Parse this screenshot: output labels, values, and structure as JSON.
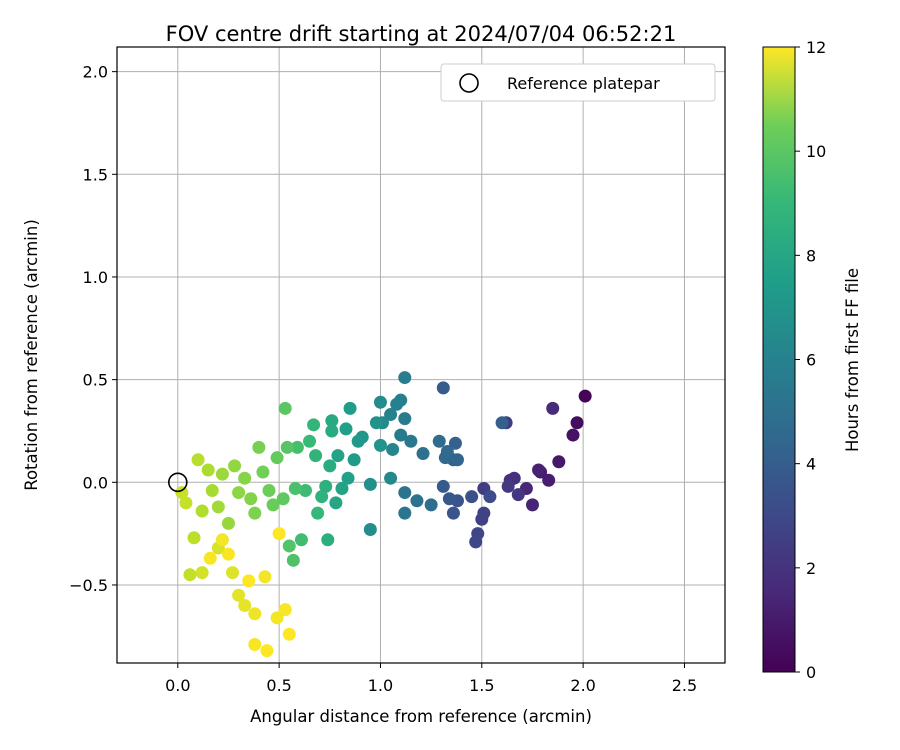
{
  "chart_data": {
    "type": "scatter",
    "title": "FOV centre drift starting at 2024/07/04 06:52:21",
    "xlabel": "Angular distance from reference (arcmin)",
    "ylabel": "Rotation from reference (arcmin)",
    "xlim": [
      -0.3,
      2.7
    ],
    "ylim": [
      -0.88,
      2.12
    ],
    "x_ticks": [
      0.0,
      0.5,
      1.0,
      1.5,
      2.0,
      2.5
    ],
    "x_tick_labels": [
      "0.0",
      "0.5",
      "1.0",
      "1.5",
      "2.0",
      "2.5"
    ],
    "y_ticks": [
      -0.5,
      0.0,
      0.5,
      1.0,
      1.5,
      2.0
    ],
    "y_tick_labels": [
      "−0.5",
      "0.0",
      "0.5",
      "1.0",
      "1.5",
      "2.0"
    ],
    "grid": true,
    "legend": {
      "position": "top-right",
      "entries": [
        "Reference platepar"
      ]
    },
    "reference_point": {
      "x": 0.0,
      "y": 0.0
    },
    "colorbar": {
      "label": "Hours from first FF file",
      "colormap": "viridis",
      "range": [
        0,
        12
      ],
      "ticks": [
        0,
        2,
        4,
        6,
        8,
        10,
        12
      ],
      "tick_labels": [
        "0",
        "2",
        "4",
        "6",
        "8",
        "10",
        "12"
      ]
    },
    "points": [
      {
        "x": 2.01,
        "y": 0.42,
        "h": 0.1
      },
      {
        "x": 1.97,
        "y": 0.29,
        "h": 0.4
      },
      {
        "x": 1.95,
        "y": 0.23,
        "h": 0.6
      },
      {
        "x": 1.88,
        "y": 0.1,
        "h": 0.8
      },
      {
        "x": 1.79,
        "y": 0.05,
        "h": 0.9
      },
      {
        "x": 1.83,
        "y": 0.01,
        "h": 1.0
      },
      {
        "x": 1.78,
        "y": 0.06,
        "h": 1.1
      },
      {
        "x": 1.75,
        "y": -0.11,
        "h": 1.2
      },
      {
        "x": 1.72,
        "y": -0.03,
        "h": 1.3
      },
      {
        "x": 1.85,
        "y": 0.36,
        "h": 1.5
      },
      {
        "x": 1.66,
        "y": 0.02,
        "h": 1.6
      },
      {
        "x": 1.64,
        "y": 0.01,
        "h": 1.7
      },
      {
        "x": 1.68,
        "y": -0.06,
        "h": 1.9
      },
      {
        "x": 1.63,
        "y": -0.02,
        "h": 2.0
      },
      {
        "x": 1.62,
        "y": 0.29,
        "h": 2.1
      },
      {
        "x": 1.51,
        "y": -0.03,
        "h": 2.2
      },
      {
        "x": 1.5,
        "y": -0.18,
        "h": 2.3
      },
      {
        "x": 1.51,
        "y": -0.15,
        "h": 2.4
      },
      {
        "x": 1.48,
        "y": -0.25,
        "h": 2.5
      },
      {
        "x": 1.47,
        "y": -0.29,
        "h": 2.6
      },
      {
        "x": 1.54,
        "y": -0.07,
        "h": 2.8
      },
      {
        "x": 1.45,
        "y": -0.07,
        "h": 3.0
      },
      {
        "x": 1.38,
        "y": -0.09,
        "h": 3.1
      },
      {
        "x": 1.36,
        "y": -0.15,
        "h": 3.2
      },
      {
        "x": 1.34,
        "y": -0.08,
        "h": 3.3
      },
      {
        "x": 1.31,
        "y": -0.02,
        "h": 3.4
      },
      {
        "x": 1.31,
        "y": 0.46,
        "h": 3.5
      },
      {
        "x": 1.6,
        "y": 0.29,
        "h": 3.6
      },
      {
        "x": 1.37,
        "y": 0.19,
        "h": 3.7
      },
      {
        "x": 1.36,
        "y": 0.11,
        "h": 3.8
      },
      {
        "x": 1.38,
        "y": 0.11,
        "h": 3.9
      },
      {
        "x": 1.32,
        "y": 0.12,
        "h": 4.0
      },
      {
        "x": 1.33,
        "y": 0.15,
        "h": 4.1
      },
      {
        "x": 1.29,
        "y": 0.2,
        "h": 4.2
      },
      {
        "x": 1.25,
        "y": -0.11,
        "h": 4.3
      },
      {
        "x": 1.21,
        "y": 0.14,
        "h": 4.4
      },
      {
        "x": 1.18,
        "y": -0.09,
        "h": 4.5
      },
      {
        "x": 1.12,
        "y": -0.05,
        "h": 4.6
      },
      {
        "x": 1.12,
        "y": -0.15,
        "h": 4.7
      },
      {
        "x": 1.15,
        "y": 0.2,
        "h": 4.8
      },
      {
        "x": 1.1,
        "y": 0.23,
        "h": 4.9
      },
      {
        "x": 1.12,
        "y": 0.31,
        "h": 5.0
      },
      {
        "x": 1.12,
        "y": 0.51,
        "h": 5.1
      },
      {
        "x": 1.1,
        "y": 0.4,
        "h": 5.2
      },
      {
        "x": 1.08,
        "y": 0.38,
        "h": 5.3
      },
      {
        "x": 1.05,
        "y": 0.33,
        "h": 5.4
      },
      {
        "x": 1.06,
        "y": 0.16,
        "h": 5.5
      },
      {
        "x": 1.05,
        "y": 0.02,
        "h": 5.6
      },
      {
        "x": 1.01,
        "y": 0.29,
        "h": 5.7
      },
      {
        "x": 1.0,
        "y": 0.39,
        "h": 5.8
      },
      {
        "x": 0.95,
        "y": -0.23,
        "h": 5.9
      },
      {
        "x": 0.95,
        "y": -0.01,
        "h": 6.0
      },
      {
        "x": 0.98,
        "y": 0.29,
        "h": 6.1
      },
      {
        "x": 1.0,
        "y": 0.18,
        "h": 6.2
      },
      {
        "x": 0.91,
        "y": 0.22,
        "h": 6.3
      },
      {
        "x": 0.89,
        "y": 0.2,
        "h": 6.4
      },
      {
        "x": 0.87,
        "y": 0.11,
        "h": 6.5
      },
      {
        "x": 0.85,
        "y": 0.36,
        "h": 6.6
      },
      {
        "x": 0.83,
        "y": 0.26,
        "h": 6.7
      },
      {
        "x": 0.84,
        "y": 0.02,
        "h": 6.8
      },
      {
        "x": 0.81,
        "y": -0.03,
        "h": 6.9
      },
      {
        "x": 0.79,
        "y": 0.13,
        "h": 7.0
      },
      {
        "x": 0.78,
        "y": -0.1,
        "h": 7.1
      },
      {
        "x": 0.76,
        "y": 0.3,
        "h": 7.2
      },
      {
        "x": 0.76,
        "y": 0.25,
        "h": 7.3
      },
      {
        "x": 0.75,
        "y": 0.08,
        "h": 7.4
      },
      {
        "x": 0.74,
        "y": -0.28,
        "h": 7.5
      },
      {
        "x": 0.73,
        "y": -0.02,
        "h": 7.6
      },
      {
        "x": 0.71,
        "y": -0.07,
        "h": 7.7
      },
      {
        "x": 0.68,
        "y": 0.13,
        "h": 7.8
      },
      {
        "x": 0.67,
        "y": 0.28,
        "h": 7.9
      },
      {
        "x": 0.69,
        "y": -0.15,
        "h": 8.0
      },
      {
        "x": 0.65,
        "y": 0.2,
        "h": 8.1
      },
      {
        "x": 0.63,
        "y": -0.04,
        "h": 8.2
      },
      {
        "x": 0.61,
        "y": -0.28,
        "h": 8.3
      },
      {
        "x": 0.59,
        "y": 0.17,
        "h": 8.4
      },
      {
        "x": 0.58,
        "y": -0.03,
        "h": 8.5
      },
      {
        "x": 0.57,
        "y": -0.38,
        "h": 8.6
      },
      {
        "x": 0.55,
        "y": -0.31,
        "h": 8.7
      },
      {
        "x": 0.54,
        "y": 0.17,
        "h": 8.8
      },
      {
        "x": 0.53,
        "y": 0.36,
        "h": 8.9
      },
      {
        "x": 0.52,
        "y": -0.08,
        "h": 9.0
      },
      {
        "x": 0.49,
        "y": 0.12,
        "h": 9.1
      },
      {
        "x": 0.47,
        "y": -0.11,
        "h": 9.2
      },
      {
        "x": 0.45,
        "y": -0.04,
        "h": 9.3
      },
      {
        "x": 0.42,
        "y": 0.05,
        "h": 9.4
      },
      {
        "x": 0.4,
        "y": 0.17,
        "h": 9.5
      },
      {
        "x": 0.38,
        "y": -0.15,
        "h": 9.6
      },
      {
        "x": 0.36,
        "y": -0.08,
        "h": 9.7
      },
      {
        "x": 0.33,
        "y": 0.02,
        "h": 9.8
      },
      {
        "x": 0.3,
        "y": -0.05,
        "h": 9.9
      },
      {
        "x": 0.28,
        "y": 0.08,
        "h": 10.0
      },
      {
        "x": 0.25,
        "y": -0.2,
        "h": 10.1
      },
      {
        "x": 0.22,
        "y": 0.04,
        "h": 10.2
      },
      {
        "x": 0.2,
        "y": -0.12,
        "h": 10.3
      },
      {
        "x": 0.17,
        "y": -0.04,
        "h": 10.4
      },
      {
        "x": 0.15,
        "y": 0.06,
        "h": 10.5
      },
      {
        "x": 0.12,
        "y": -0.14,
        "h": 10.6
      },
      {
        "x": 0.1,
        "y": 0.11,
        "h": 10.7
      },
      {
        "x": 0.08,
        "y": -0.27,
        "h": 10.8
      },
      {
        "x": 0.06,
        "y": -0.45,
        "h": 10.9
      },
      {
        "x": 0.04,
        "y": -0.1,
        "h": 11.0
      },
      {
        "x": 0.02,
        "y": -0.05,
        "h": 11.0
      },
      {
        "x": 0.12,
        "y": -0.44,
        "h": 11.2
      },
      {
        "x": 0.2,
        "y": -0.32,
        "h": 11.3
      },
      {
        "x": 0.27,
        "y": -0.44,
        "h": 11.4
      },
      {
        "x": 0.3,
        "y": -0.55,
        "h": 11.5
      },
      {
        "x": 0.33,
        "y": -0.6,
        "h": 11.6
      },
      {
        "x": 0.38,
        "y": -0.64,
        "h": 11.7
      },
      {
        "x": 0.43,
        "y": -0.46,
        "h": 11.8
      },
      {
        "x": 0.49,
        "y": -0.66,
        "h": 11.8
      },
      {
        "x": 0.53,
        "y": -0.62,
        "h": 11.9
      },
      {
        "x": 0.55,
        "y": -0.74,
        "h": 12.0
      },
      {
        "x": 0.44,
        "y": -0.82,
        "h": 12.0
      },
      {
        "x": 0.38,
        "y": -0.79,
        "h": 11.9
      },
      {
        "x": 0.25,
        "y": -0.35,
        "h": 11.9
      },
      {
        "x": 0.22,
        "y": -0.28,
        "h": 11.8
      },
      {
        "x": 0.16,
        "y": -0.37,
        "h": 11.9
      },
      {
        "x": 0.35,
        "y": -0.48,
        "h": 12.0
      },
      {
        "x": 0.5,
        "y": -0.25,
        "h": 12.0
      }
    ]
  }
}
